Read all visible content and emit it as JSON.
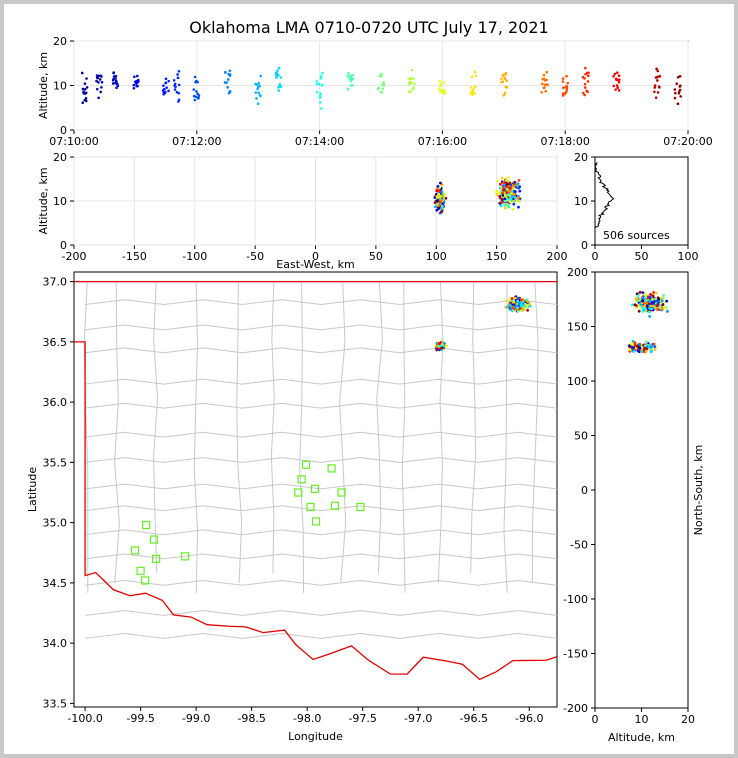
{
  "title": "Oklahoma LMA 0710-0720 UTC July 17, 2021",
  "colors": {
    "state_border": "#e00000",
    "counties": "#c8c8c8",
    "stations": "#66ee22",
    "hist": "#000000"
  },
  "chart_data": [
    {
      "id": "time_height",
      "type": "scatter",
      "ylabel": "Altitude, km",
      "xlabel": "",
      "xlim": [
        "07:10:00",
        "07:20:00"
      ],
      "ylim": [
        0,
        20
      ],
      "xticks": [
        "07:10:00",
        "07:12:00",
        "07:14:00",
        "07:16:00",
        "07:18:00",
        "07:20:00"
      ],
      "yticks": [
        0,
        10,
        20
      ],
      "color_by": "time (jet colormap)",
      "grid": true,
      "point_columns": [
        {
          "t": "07:10:10",
          "alt": [
            6,
            13
          ]
        },
        {
          "t": "07:10:25",
          "alt": [
            8,
            13
          ]
        },
        {
          "t": "07:10:40",
          "alt": [
            10,
            12
          ]
        },
        {
          "t": "07:11:00",
          "alt": [
            9,
            12
          ]
        },
        {
          "t": "07:11:30",
          "alt": [
            8,
            12
          ]
        },
        {
          "t": "07:11:40",
          "alt": [
            7,
            13
          ]
        },
        {
          "t": "07:12:00",
          "alt": [
            6,
            12
          ]
        },
        {
          "t": "07:12:30",
          "alt": [
            8,
            14
          ]
        },
        {
          "t": "07:13:00",
          "alt": [
            6,
            12
          ]
        },
        {
          "t": "07:13:20",
          "alt": [
            10,
            14
          ]
        },
        {
          "t": "07:14:00",
          "alt": [
            5,
            12
          ]
        },
        {
          "t": "07:14:30",
          "alt": [
            9,
            13
          ]
        },
        {
          "t": "07:15:00",
          "alt": [
            8,
            13
          ]
        },
        {
          "t": "07:15:30",
          "alt": [
            8,
            13
          ]
        },
        {
          "t": "07:16:00",
          "alt": [
            8,
            11
          ]
        },
        {
          "t": "07:16:30",
          "alt": [
            7,
            13
          ]
        },
        {
          "t": "07:17:00",
          "alt": [
            8,
            13
          ]
        },
        {
          "t": "07:17:40",
          "alt": [
            9,
            12
          ]
        },
        {
          "t": "07:18:00",
          "alt": [
            8,
            13
          ]
        },
        {
          "t": "07:18:20",
          "alt": [
            8,
            14
          ]
        },
        {
          "t": "07:18:50",
          "alt": [
            9,
            13
          ]
        },
        {
          "t": "07:19:30",
          "alt": [
            7,
            13
          ]
        },
        {
          "t": "07:19:50",
          "alt": [
            6,
            12
          ]
        }
      ]
    },
    {
      "id": "ew_height",
      "type": "scatter",
      "xlabel": "East-West, km",
      "ylabel": "Altitude, km",
      "xlim": [
        -200,
        200
      ],
      "ylim": [
        0,
        20
      ],
      "xticks": [
        -200,
        -150,
        -100,
        -50,
        0,
        50,
        100,
        150,
        200
      ],
      "yticks": [
        0,
        10,
        20
      ],
      "grid": true,
      "clusters": [
        {
          "x_center": 103,
          "x_spread": 4,
          "alt_center": 10,
          "alt_spread": 3
        },
        {
          "x_center": 160,
          "x_spread": 8,
          "alt_center": 12,
          "alt_spread": 3
        }
      ]
    },
    {
      "id": "height_histogram",
      "type": "line",
      "xlim": [
        0,
        100
      ],
      "ylim": [
        0,
        20
      ],
      "xticks": [
        0,
        50,
        100
      ],
      "yticks": [
        0,
        10,
        20
      ],
      "annotation": "506 sources",
      "profile": [
        {
          "alt": 4,
          "n": 2
        },
        {
          "alt": 5,
          "n": 4
        },
        {
          "alt": 6,
          "n": 6
        },
        {
          "alt": 7,
          "n": 9
        },
        {
          "alt": 8,
          "n": 12
        },
        {
          "alt": 9,
          "n": 15
        },
        {
          "alt": 10,
          "n": 18
        },
        {
          "alt": 11,
          "n": 16
        },
        {
          "alt": 12,
          "n": 13
        },
        {
          "alt": 13,
          "n": 10
        },
        {
          "alt": 14,
          "n": 7
        },
        {
          "alt": 15,
          "n": 5
        },
        {
          "alt": 16,
          "n": 3
        },
        {
          "alt": 17,
          "n": 2
        },
        {
          "alt": 18,
          "n": 1
        }
      ]
    },
    {
      "id": "plan_view",
      "type": "scatter",
      "xlabel": "Longitude",
      "ylabel": "Latitude",
      "xlim": [
        -100.1,
        -95.75
      ],
      "ylim": [
        33.47,
        37.08
      ],
      "xticks": [
        -100.0,
        -99.5,
        -99.0,
        -98.5,
        -98.0,
        -97.5,
        -97.0,
        -96.5,
        -96.0
      ],
      "yticks": [
        33.5,
        34.0,
        34.5,
        35.0,
        35.5,
        36.0,
        36.5,
        37.0
      ],
      "clusters": [
        {
          "lon": -96.1,
          "lat": 36.81,
          "lon_spread": 0.08,
          "lat_spread": 0.05
        },
        {
          "lon": -96.8,
          "lat": 36.47,
          "lon_spread": 0.04,
          "lat_spread": 0.03
        }
      ],
      "stations": [
        {
          "lon": -99.55,
          "lat": 34.77
        },
        {
          "lon": -99.5,
          "lat": 34.6
        },
        {
          "lon": -99.46,
          "lat": 34.52
        },
        {
          "lon": -99.45,
          "lat": 34.98
        },
        {
          "lon": -99.38,
          "lat": 34.86
        },
        {
          "lon": -99.36,
          "lat": 34.7
        },
        {
          "lon": -99.1,
          "lat": 34.72
        },
        {
          "lon": -98.08,
          "lat": 35.25
        },
        {
          "lon": -98.05,
          "lat": 35.36
        },
        {
          "lon": -98.01,
          "lat": 35.48
        },
        {
          "lon": -97.97,
          "lat": 35.13
        },
        {
          "lon": -97.93,
          "lat": 35.28
        },
        {
          "lon": -97.92,
          "lat": 35.01
        },
        {
          "lon": -97.78,
          "lat": 35.45
        },
        {
          "lon": -97.75,
          "lat": 35.14
        },
        {
          "lon": -97.69,
          "lat": 35.25
        },
        {
          "lon": -97.52,
          "lat": 35.13
        }
      ]
    },
    {
      "id": "height_ns",
      "type": "scatter",
      "xlabel": "Altitude, km",
      "ylabel": "North-South, km",
      "xlim": [
        0,
        20
      ],
      "ylim": [
        -200,
        200
      ],
      "xticks": [
        0,
        10,
        20
      ],
      "yticks": [
        -200,
        -150,
        -100,
        -50,
        0,
        50,
        100,
        150,
        200
      ],
      "clusters": [
        {
          "ns_center": 172,
          "ns_spread": 8,
          "alt_center": 12,
          "alt_spread": 3
        },
        {
          "ns_center": 131,
          "ns_spread": 4,
          "alt_center": 10,
          "alt_spread": 3
        }
      ]
    }
  ]
}
